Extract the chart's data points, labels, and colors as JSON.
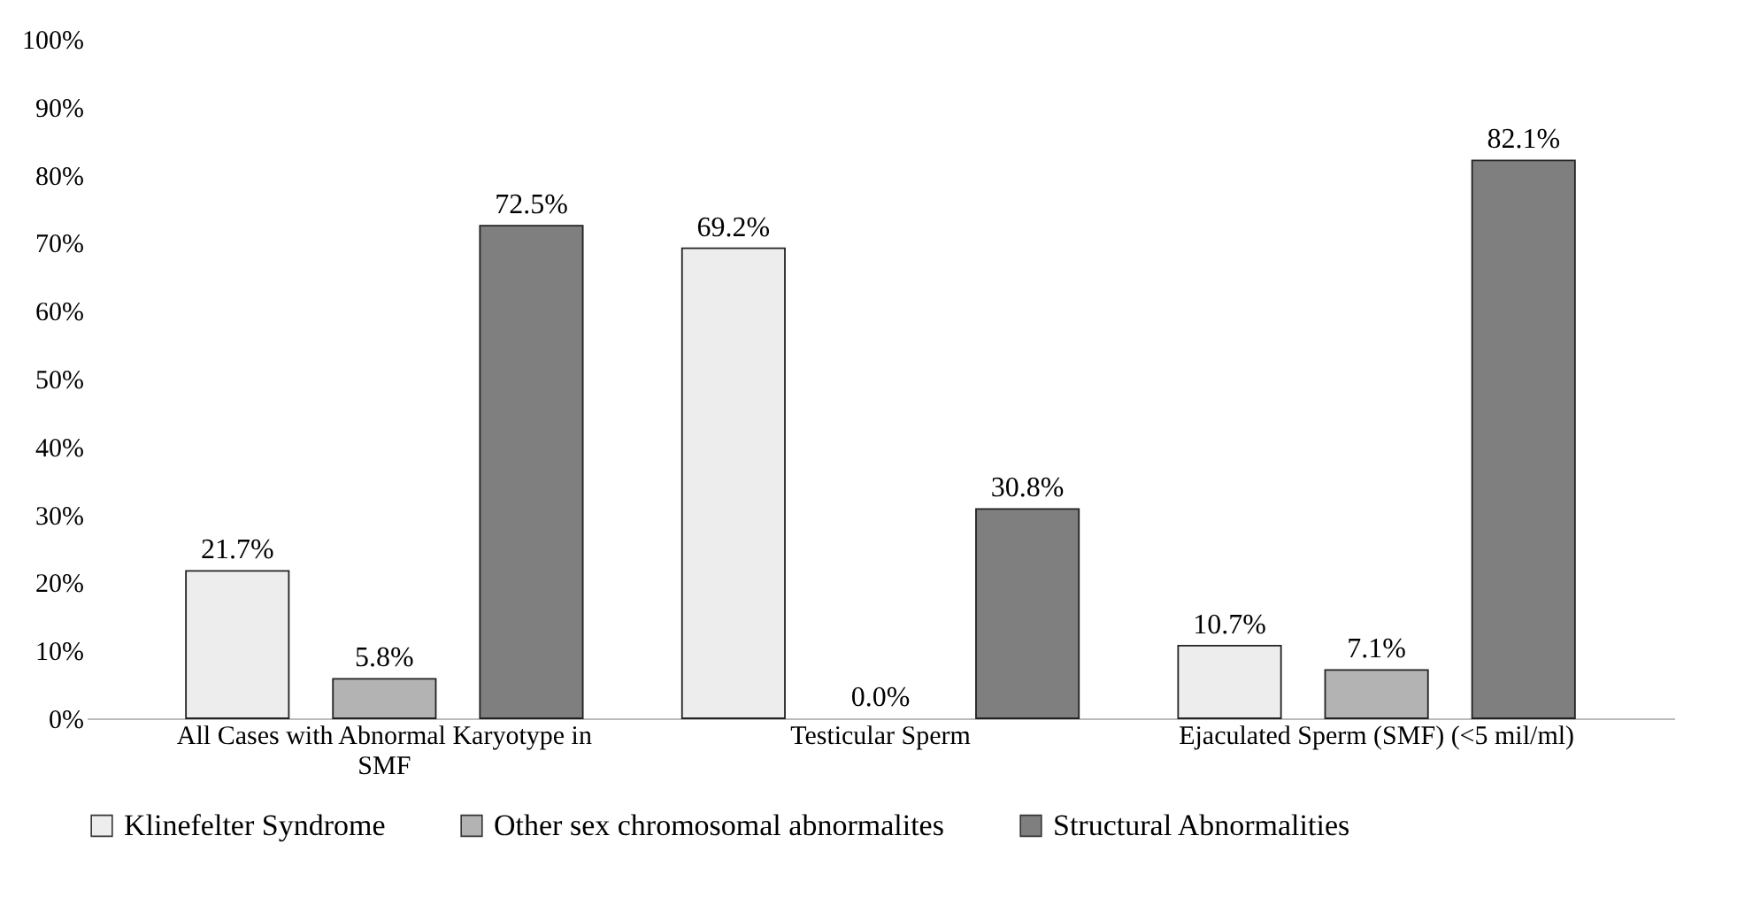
{
  "chart_data": {
    "type": "bar",
    "categories": [
      "All Cases with Abnormal Karyotype in SMF",
      "Testicular Sperm",
      "Ejaculated Sperm (SMF) (<5 mil/ml)"
    ],
    "series": [
      {
        "name": "Klinefelter Syndrome",
        "color": "#ededed",
        "values": [
          21.7,
          69.2,
          10.7
        ],
        "value_labels": [
          "21.7%",
          "69.2%",
          "10.7%"
        ]
      },
      {
        "name": "Other sex chromosomal abnormalites",
        "color": "#b3b3b3",
        "values": [
          5.8,
          0.0,
          7.1
        ],
        "value_labels": [
          "5.8%",
          "0.0%",
          "7.1%"
        ]
      },
      {
        "name": "Structural Abnormalities",
        "color": "#7f7f7f",
        "values": [
          72.5,
          30.8,
          82.1
        ],
        "value_labels": [
          "72.5%",
          "30.8%",
          "82.1%"
        ]
      }
    ],
    "ylim": [
      0,
      100
    ],
    "yticks": [
      {
        "value": 0,
        "label": "0%"
      },
      {
        "value": 10,
        "label": "10%"
      },
      {
        "value": 20,
        "label": "20%"
      },
      {
        "value": 30,
        "label": "30%"
      },
      {
        "value": 40,
        "label": "40%"
      },
      {
        "value": 50,
        "label": "50%"
      },
      {
        "value": 60,
        "label": "60%"
      },
      {
        "value": 70,
        "label": "70%"
      },
      {
        "value": 80,
        "label": "80%"
      },
      {
        "value": 90,
        "label": "90%"
      },
      {
        "value": 100,
        "label": "100%"
      }
    ],
    "grid": false,
    "legend": "bottom"
  }
}
